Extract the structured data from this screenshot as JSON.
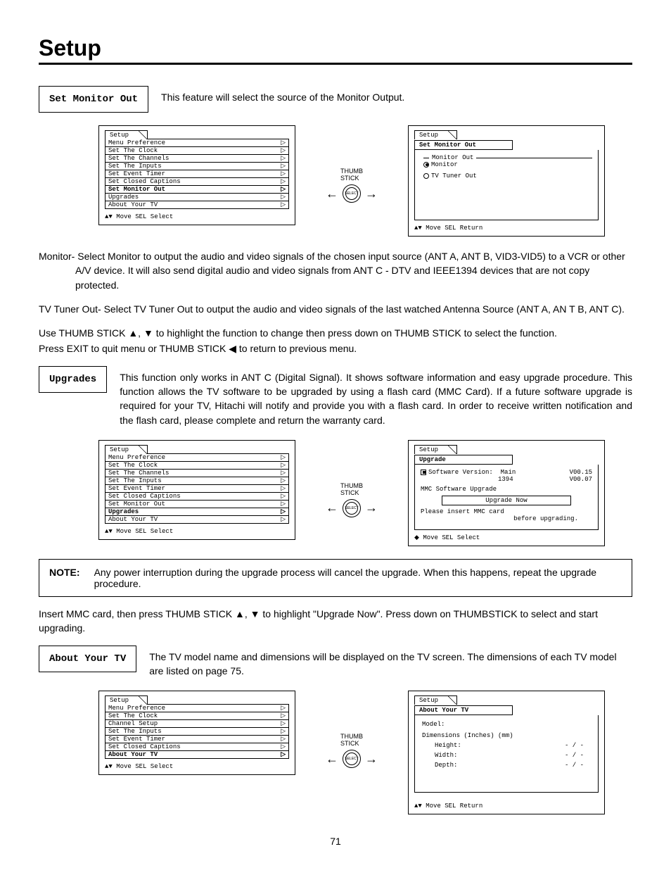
{
  "page_title": "Setup",
  "page_number": "71",
  "sec1_label": "Set Monitor Out",
  "sec1_desc": "This feature will select the source of the Monitor Output.",
  "setup_tab": "Setup",
  "menu1_items": [
    "Menu Preference",
    "Set The Clock",
    "Set The Channels",
    "Set The Inputs",
    "Set Event Timer",
    "Set Closed Captions",
    "Set Monitor Out",
    "Upgrades",
    "About Your TV"
  ],
  "menu1_sel_index": 6,
  "footer_move_select": "▲▼ Move  SEL  Select",
  "footer_move_return": "▲▼ Move  SEL  Return",
  "footer_dir_select": "◆ Move  SEL  Select",
  "thumb_label_top": "THUMB",
  "thumb_label_bot": "STICK",
  "thumb_select": "SELECT",
  "detail1_subtab": "Set Monitor Out",
  "detail1_header": "Monitor Out",
  "detail1_opt1": "Monitor",
  "detail1_opt2": "TV Tuner Out",
  "body1_line1": "Monitor- Select Monitor to output the audio and video signals of the chosen input source (ANT A, ANT B, VID3-VID5) to a VCR or other A/V device.  It will also send digital audio and video signals from ANT C - DTV and IEEE1394 devices that are not copy protected.",
  "body1_line2": "TV Tuner Out- Select TV Tuner Out to output the audio and video signals of the last watched Antenna Source (ANT A, AN T B, ANT C).",
  "body1_line3": "Use THUMB STICK ▲, ▼ to highlight the function to change then press down on THUMB STICK to select the function.",
  "body1_line4": "Press EXIT to quit menu or THUMB STICK ◀ to return to previous menu.",
  "sec2_label": "Upgrades",
  "sec2_desc": "This function only works in ANT C (Digital Signal).  It shows software information and easy upgrade procedure.  This function allows the TV software to be upgraded by using a flash card (MMC Card).  If a future software upgrade is required for your TV, Hitachi will notify and provide you with a flash card.  In order to receive written notification and the flash card, please complete and return the warranty card.",
  "menu2_sel_index": 7,
  "detail2_subtab": "Upgrade",
  "detail2_sw_label": "Software Version:",
  "detail2_main_label": "Main",
  "detail2_main_ver": "V00.15",
  "detail2_1394_label": "1394",
  "detail2_1394_ver": "V00.07",
  "detail2_mmc": "MMC Software Upgrade",
  "detail2_upgrade_now": "Upgrade Now",
  "detail2_msg1": "Please insert MMC card",
  "detail2_msg2": "before upgrading.",
  "note_label": "NOTE:",
  "note_text": "Any power interruption during the upgrade process will cancel the upgrade.  When this happens, repeat the upgrade procedure.",
  "body2_after_note": "Insert MMC card, then press THUMB STICK ▲, ▼ to highlight \"Upgrade Now\".  Press down on THUMBSTICK to select and start upgrading.",
  "sec3_label": "About Your TV",
  "sec3_desc": "The TV model name and dimensions will be displayed on the TV screen.  The dimensions of each TV model are listed on page 75.",
  "menu3_items": [
    "Menu Preference",
    "Set The Clock",
    "Channel Setup",
    "Set The Inputs",
    "Set Event Timer",
    "Set Closed Captions",
    "About Your TV"
  ],
  "menu3_sel_index": 6,
  "detail3_subtab": "About Your TV",
  "detail3_model": "Model:",
  "detail3_dim": "Dimensions  (Inches) (mm)",
  "detail3_h": "Height:",
  "detail3_w": "Width:",
  "detail3_d": "Depth:",
  "detail3_dash": "- / -"
}
